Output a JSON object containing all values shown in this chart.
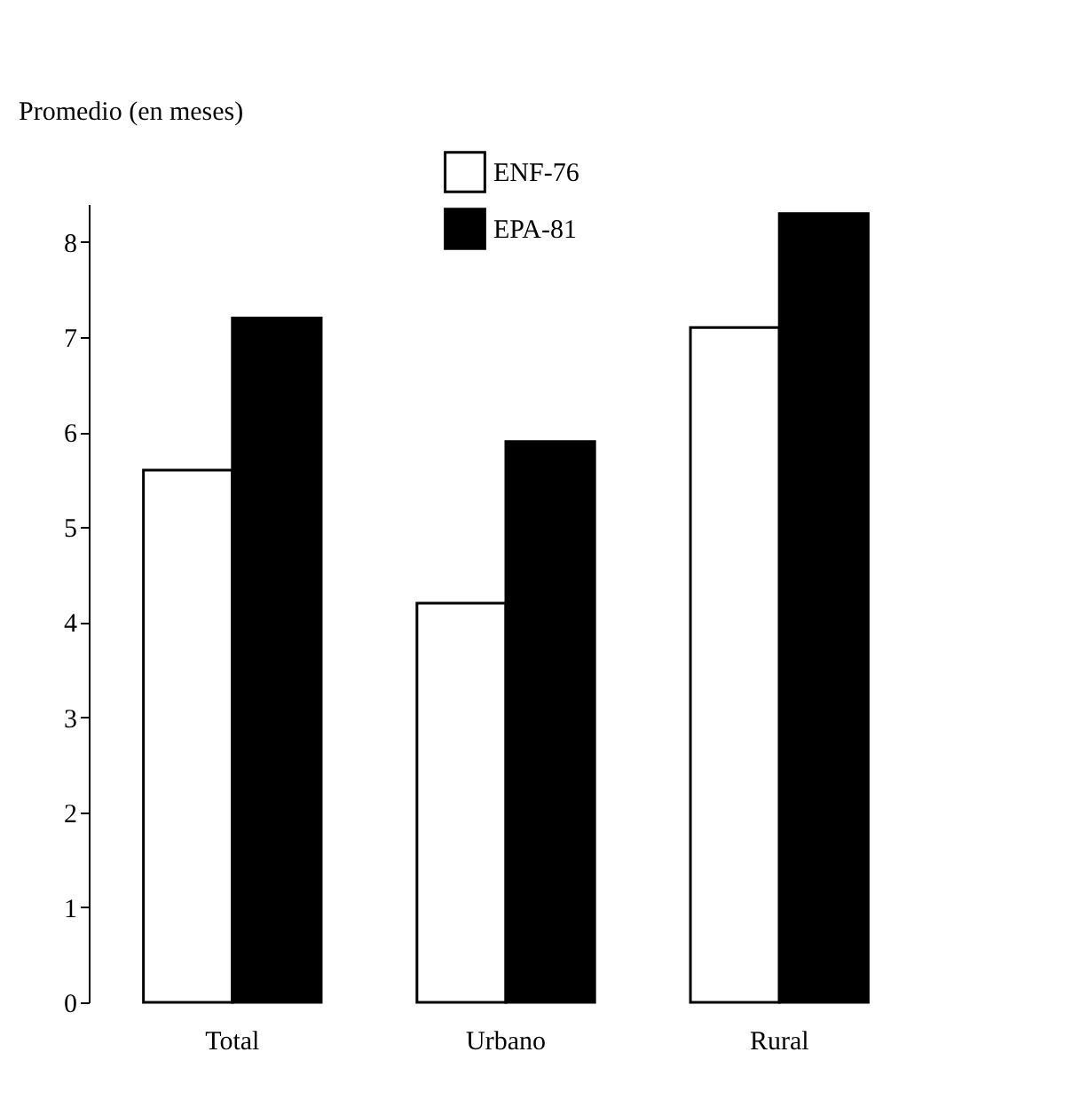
{
  "chart_data": {
    "type": "bar",
    "ylabel": "Promedio (en meses)",
    "categories": [
      "Total",
      "Urbano",
      "Rural"
    ],
    "series": [
      {
        "name": "ENF-76",
        "color": "#ffffff",
        "values": [
          5.6,
          4.2,
          7.1
        ]
      },
      {
        "name": "EPA-81",
        "color": "#000000",
        "values": [
          7.2,
          5.9,
          8.3
        ]
      }
    ],
    "ylim": [
      0,
      8.4
    ],
    "yticks": [
      0,
      1,
      2,
      3,
      4,
      5,
      6,
      7,
      8
    ],
    "grid": false,
    "legend": "top"
  }
}
